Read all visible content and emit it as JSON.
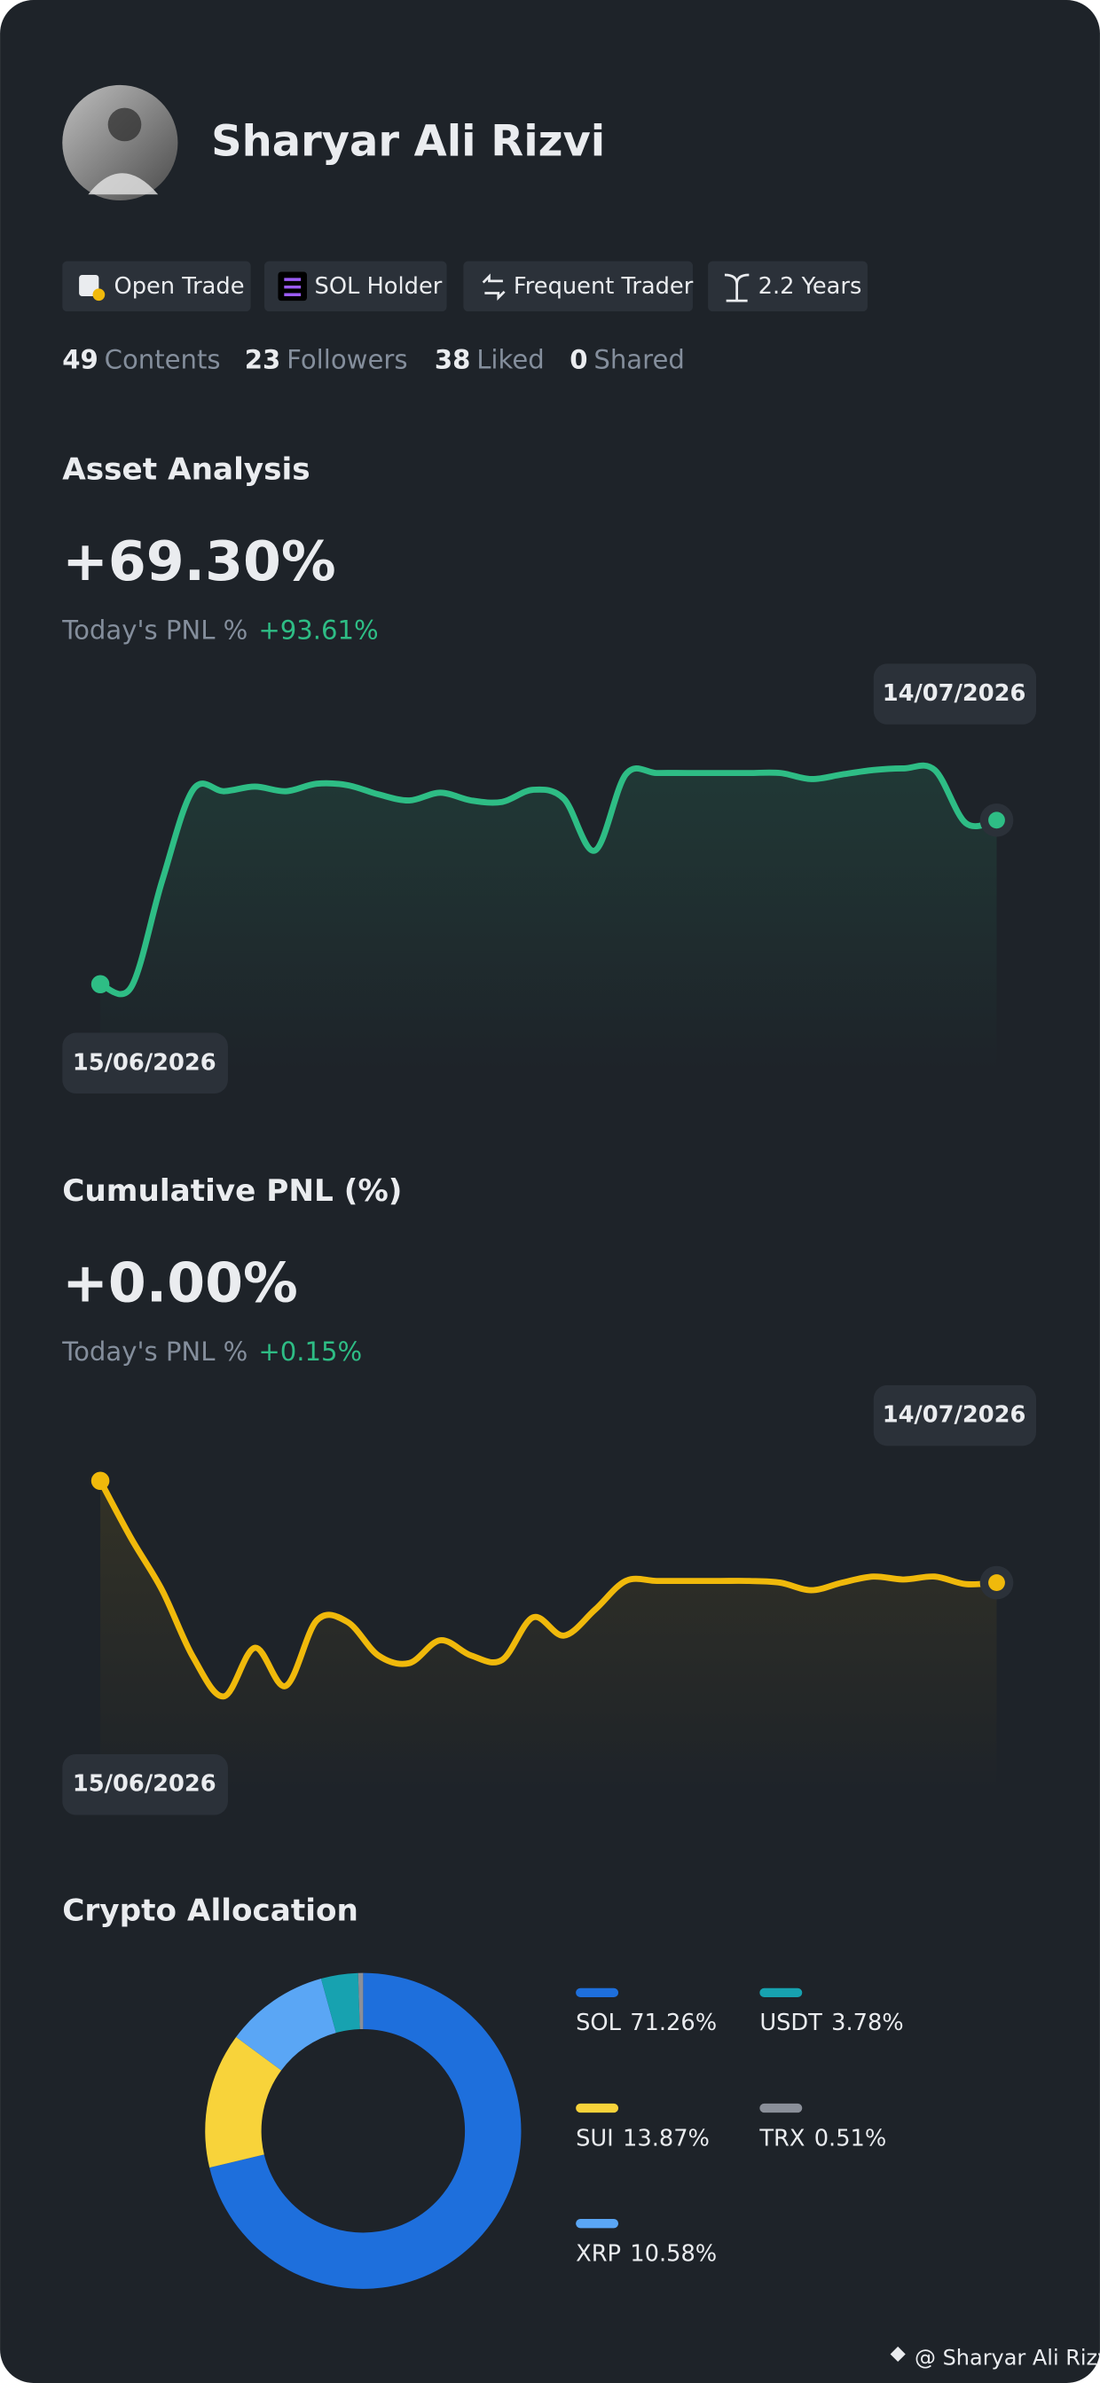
{
  "profile": {
    "name": "Sharyar Ali Rizvi",
    "badges": [
      "Open Trade",
      "SOL Holder",
      "Frequent Trader",
      "2.2 Years"
    ],
    "stats": [
      {
        "value": 49,
        "label": "Contents"
      },
      {
        "value": 23,
        "label": "Followers"
      },
      {
        "value": 38,
        "label": "Liked"
      },
      {
        "value": 0,
        "label": "Shared"
      }
    ],
    "footer": "@ Sharyar Ali Rizvi"
  },
  "chart_data": [
    {
      "type": "line",
      "title": "Asset Analysis",
      "headline": "+69.30%",
      "pnl_label": "Today's PNL %",
      "pnl_value": "+93.61%",
      "color": "#2ebd85",
      "ylim": [
        0,
        100
      ],
      "categories": [
        "15/06/2026",
        null,
        null,
        null,
        null,
        null,
        null,
        null,
        null,
        null,
        null,
        null,
        null,
        null,
        null,
        null,
        null,
        null,
        null,
        null,
        null,
        null,
        null,
        null,
        null,
        null,
        null,
        null,
        null,
        "14/07/2026"
      ],
      "values": [
        7.5,
        6.3,
        50,
        87.5,
        86.9,
        88.8,
        86.9,
        90,
        89.4,
        85.6,
        83.1,
        86.3,
        83.1,
        82.5,
        87.5,
        83.8,
        62.5,
        93.8,
        94.4,
        94.4,
        94.4,
        94.4,
        94.4,
        91.9,
        93.8,
        95.6,
        96.3,
        95.6,
        73.8,
        75
      ]
    },
    {
      "type": "line",
      "title": "Cumulative PNL (%)",
      "headline": "+0.00%",
      "pnl_label": "Today's PNL %",
      "pnl_value": "+0.15%",
      "color": "#f0b90b",
      "ylim": [
        0,
        100
      ],
      "categories": [
        "15/06/2026",
        null,
        null,
        null,
        null,
        null,
        null,
        null,
        null,
        null,
        null,
        null,
        null,
        null,
        null,
        null,
        null,
        null,
        null,
        null,
        null,
        null,
        null,
        null,
        null,
        null,
        null,
        null,
        null,
        "14/07/2026"
      ],
      "values": [
        100,
        76.3,
        55,
        27.5,
        11.3,
        31.3,
        15.6,
        42.5,
        41.9,
        28.1,
        25,
        34.4,
        28.1,
        26.3,
        43.8,
        36.3,
        46.9,
        58.8,
        58.8,
        58.8,
        58.8,
        58.8,
        58.1,
        55,
        58.1,
        60.6,
        59.4,
        60.6,
        57.5,
        58.1
      ]
    },
    {
      "type": "pie",
      "title": "Crypto Allocation",
      "categories": [
        "SOL",
        "SUI",
        "XRP",
        "USDT",
        "TRX"
      ],
      "values": [
        71.26,
        13.87,
        10.58,
        3.78,
        0.51
      ],
      "value_labels": [
        "71.26%",
        "13.87%",
        "10.58%",
        "3.78%",
        "0.51%"
      ],
      "colors": [
        "#1e6fdc",
        "#f8d33a",
        "#5aa6f5",
        "#17a2b0",
        "#8a8f99"
      ]
    }
  ]
}
